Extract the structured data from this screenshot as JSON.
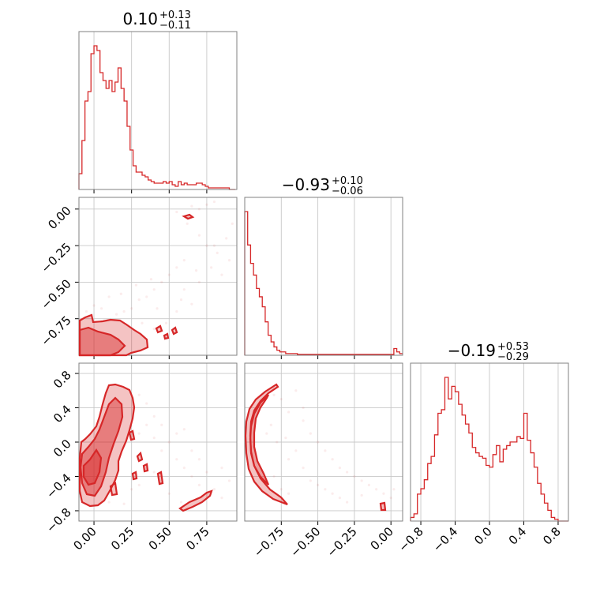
{
  "chart_data": {
    "type": "corner",
    "colors": {
      "series": "#d62728",
      "grid": "#c8c8c8",
      "frame": "#808080"
    },
    "params": [
      {
        "median": "0.10",
        "plus": "+0.13",
        "minus": "−0.11"
      },
      {
        "median": "−0.93",
        "plus": "+0.10",
        "minus": "−0.06"
      },
      {
        "median": "−0.19",
        "plus": "+0.53",
        "minus": "−0.29"
      }
    ],
    "axes": [
      {
        "lim": [
          -0.1,
          0.95
        ],
        "ticks": [
          0.0,
          0.25,
          0.5,
          0.75
        ],
        "tick_labels": [
          "0.00",
          "0.25",
          "0.50",
          "0.75"
        ]
      },
      {
        "lim": [
          -1.0,
          0.08
        ],
        "ticks": [
          -0.75,
          -0.5,
          -0.25,
          0.0
        ],
        "tick_labels": [
          "−0.75",
          "−0.50",
          "−0.25",
          "0.00"
        ]
      },
      {
        "lim": [
          -0.92,
          0.92
        ],
        "ticks": [
          -0.8,
          -0.4,
          0.0,
          0.4,
          0.8
        ],
        "tick_labels": [
          "−0.8",
          "−0.4",
          "0.0",
          "0.4",
          "0.8"
        ]
      }
    ],
    "hist1d": [
      {
        "edges_start": -0.1,
        "bin_width": 0.02,
        "counts": [
          0.1,
          0.31,
          0.56,
          0.62,
          0.86,
          0.91,
          0.88,
          0.74,
          0.69,
          0.64,
          0.69,
          0.62,
          0.68,
          0.77,
          0.64,
          0.56,
          0.4,
          0.25,
          0.15,
          0.11,
          0.11,
          0.09,
          0.08,
          0.06,
          0.05,
          0.04,
          0.04,
          0.04,
          0.05,
          0.04,
          0.05,
          0.03,
          0.02,
          0.05,
          0.03,
          0.04,
          0.03,
          0.03,
          0.03,
          0.04,
          0.04,
          0.03,
          0.02,
          0.01,
          0.01,
          0.01,
          0.01,
          0.01,
          0.01,
          0.01,
          0.0,
          0.0
        ]
      },
      {
        "edges_start": -1.0,
        "bin_width": 0.02,
        "counts": [
          0.86,
          0.66,
          0.55,
          0.48,
          0.4,
          0.35,
          0.29,
          0.2,
          0.12,
          0.08,
          0.05,
          0.03,
          0.02,
          0.02,
          0.01,
          0.01,
          0.01,
          0.01,
          0.005,
          0.005,
          0.005,
          0.005,
          0.005,
          0.005,
          0.005,
          0.005,
          0.005,
          0.005,
          0.005,
          0.005,
          0.005,
          0.005,
          0.005,
          0.005,
          0.005,
          0.005,
          0.005,
          0.005,
          0.005,
          0.005,
          0.005,
          0.005,
          0.005,
          0.005,
          0.005,
          0.005,
          0.005,
          0.005,
          0.005,
          0.005,
          0.005,
          0.04,
          0.02,
          0.01
        ]
      },
      {
        "edges_start": -0.92,
        "bin_width": 0.04,
        "counts": [
          0.02,
          0.04,
          0.15,
          0.18,
          0.23,
          0.32,
          0.36,
          0.48,
          0.6,
          0.62,
          0.8,
          0.68,
          0.75,
          0.72,
          0.65,
          0.59,
          0.54,
          0.49,
          0.41,
          0.38,
          0.36,
          0.35,
          0.31,
          0.3,
          0.37,
          0.42,
          0.33,
          0.4,
          0.42,
          0.44,
          0.44,
          0.47,
          0.46,
          0.6,
          0.45,
          0.38,
          0.3,
          0.21,
          0.15,
          0.1,
          0.06,
          0.02,
          0.01,
          0.0,
          0.0,
          0.0
        ]
      }
    ],
    "samples_2d": {
      "p1_p0": [
        [
          0.65,
          0.02
        ],
        [
          0.7,
          0.0
        ],
        [
          0.75,
          0.03
        ],
        [
          0.8,
          0.05
        ],
        [
          0.55,
          -0.02
        ],
        [
          0.62,
          -0.1
        ],
        [
          0.7,
          -0.18
        ],
        [
          0.75,
          -0.25
        ],
        [
          0.82,
          -0.3
        ],
        [
          0.88,
          -0.2
        ],
        [
          0.9,
          -0.35
        ],
        [
          0.6,
          -0.35
        ],
        [
          0.55,
          -0.4
        ],
        [
          0.5,
          -0.45
        ],
        [
          0.45,
          -0.5
        ],
        [
          0.4,
          -0.55
        ],
        [
          0.35,
          -0.6
        ],
        [
          0.3,
          -0.62
        ],
        [
          0.25,
          -0.68
        ],
        [
          0.2,
          -0.7
        ],
        [
          0.15,
          -0.72
        ],
        [
          0.6,
          -0.55
        ],
        [
          0.7,
          -0.5
        ],
        [
          0.78,
          -0.4
        ],
        [
          0.85,
          -0.45
        ],
        [
          0.65,
          -0.65
        ],
        [
          0.55,
          -0.7
        ],
        [
          0.48,
          -0.78
        ],
        [
          0.4,
          -0.82
        ],
        [
          0.32,
          -0.78
        ],
        [
          0.1,
          -0.6
        ],
        [
          0.05,
          -0.68
        ],
        [
          0.0,
          -0.66
        ],
        [
          -0.05,
          -0.7
        ],
        [
          0.18,
          -0.58
        ],
        [
          0.28,
          -0.52
        ],
        [
          0.38,
          -0.48
        ],
        [
          0.42,
          -0.68
        ],
        [
          0.58,
          -0.62
        ],
        [
          0.68,
          -0.42
        ],
        [
          0.8,
          -0.25
        ],
        [
          0.92,
          -0.1
        ]
      ],
      "p2_p0": [
        [
          0.3,
          0.1
        ],
        [
          0.35,
          0.2
        ],
        [
          0.4,
          0.05
        ],
        [
          0.45,
          -0.1
        ],
        [
          0.5,
          0.0
        ],
        [
          0.55,
          -0.2
        ],
        [
          0.6,
          -0.3
        ],
        [
          0.65,
          -0.4
        ],
        [
          0.7,
          -0.5
        ],
        [
          0.75,
          -0.6
        ],
        [
          0.8,
          -0.55
        ],
        [
          0.85,
          -0.65
        ],
        [
          0.35,
          -0.3
        ],
        [
          0.4,
          -0.35
        ],
        [
          0.45,
          -0.45
        ],
        [
          0.3,
          -0.5
        ],
        [
          0.25,
          -0.55
        ],
        [
          0.35,
          0.45
        ],
        [
          0.3,
          0.55
        ],
        [
          0.4,
          0.3
        ],
        [
          0.55,
          0.1
        ],
        [
          0.65,
          -0.1
        ],
        [
          0.7,
          -0.2
        ],
        [
          0.6,
          0.15
        ],
        [
          0.5,
          -0.6
        ],
        [
          0.58,
          -0.7
        ],
        [
          0.2,
          -0.72
        ],
        [
          0.1,
          -0.7
        ],
        [
          0.45,
          0.2
        ],
        [
          0.75,
          -0.35
        ],
        [
          0.85,
          -0.3
        ],
        [
          0.9,
          -0.45
        ]
      ],
      "p2_p1": [
        [
          -0.8,
          0.55
        ],
        [
          -0.75,
          0.5
        ],
        [
          -0.7,
          0.35
        ],
        [
          -0.6,
          0.25
        ],
        [
          -0.55,
          0.1
        ],
        [
          -0.5,
          0.0
        ],
        [
          -0.45,
          -0.1
        ],
        [
          -0.4,
          -0.2
        ],
        [
          -0.35,
          -0.3
        ],
        [
          -0.3,
          -0.35
        ],
        [
          -0.25,
          -0.4
        ],
        [
          -0.2,
          -0.45
        ],
        [
          -0.15,
          -0.5
        ],
        [
          -0.1,
          -0.55
        ],
        [
          -0.05,
          -0.6
        ],
        [
          0.0,
          -0.65
        ],
        [
          -0.7,
          -0.2
        ],
        [
          -0.65,
          -0.1
        ],
        [
          -0.6,
          -0.3
        ],
        [
          -0.55,
          -0.45
        ],
        [
          -0.5,
          -0.5
        ],
        [
          -0.45,
          -0.55
        ],
        [
          -0.4,
          -0.6
        ],
        [
          -0.35,
          -0.65
        ],
        [
          -0.8,
          -0.4
        ],
        [
          -0.75,
          -0.55
        ],
        [
          -0.7,
          -0.6
        ],
        [
          -0.85,
          0.1
        ],
        [
          -0.82,
          0.2
        ],
        [
          -0.78,
          0.0
        ],
        [
          -0.72,
          0.05
        ],
        [
          -0.3,
          -0.7
        ],
        [
          -0.2,
          -0.62
        ],
        [
          0.02,
          -0.55
        ],
        [
          -0.6,
          0.4
        ],
        [
          -0.65,
          0.6
        ]
      ]
    }
  }
}
